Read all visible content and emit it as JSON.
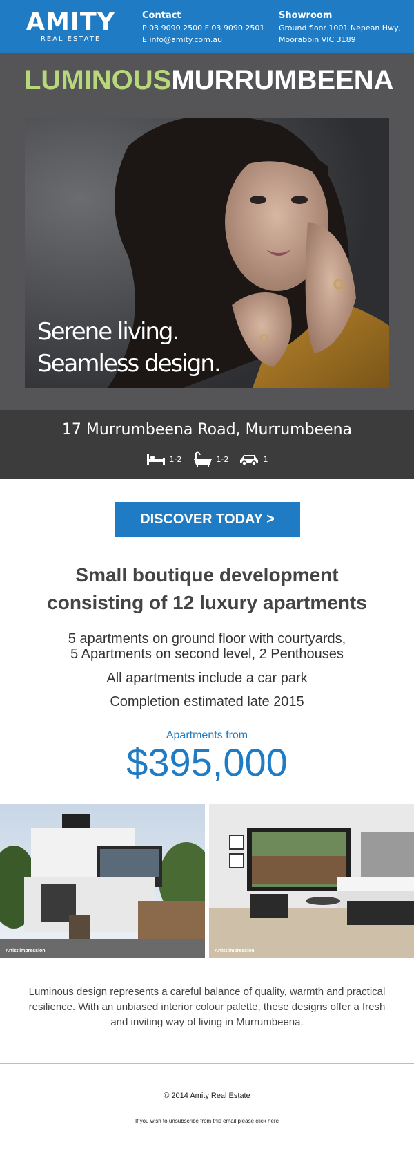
{
  "header": {
    "logo_main": "AMITY",
    "logo_sub": "REAL ESTATE",
    "contact": {
      "title": "Contact",
      "phone_line": "P 03 9090 2500 F 03 9090 2501",
      "email_line": "E info@amity.com.au"
    },
    "showroom": {
      "title": "Showroom",
      "line1": "Ground floor 1001 Nepean Hwy,",
      "line2": "Moorabbin VIC 3189"
    }
  },
  "hero": {
    "title_part1": "LUMINOUS",
    "title_part2": "MURRUMBEENA",
    "tagline_line1": "Serene living.",
    "tagline_line2": "Seamless design."
  },
  "property": {
    "address": "17 Murrumbeena Road, Murrumbeena",
    "features": [
      {
        "icon": "bed-icon",
        "value": "1-2"
      },
      {
        "icon": "bath-icon",
        "value": "1-2"
      },
      {
        "icon": "car-icon",
        "value": "1"
      }
    ]
  },
  "cta": {
    "label": "DISCOVER TODAY >"
  },
  "headline": {
    "line1": "Small boutique development",
    "line2": "consisting of 12 luxury apartments"
  },
  "details": {
    "line1": "5 apartments on ground floor with courtyards,",
    "line2": "5 Apartments on second level, 2 Penthouses",
    "line3": "All apartments include a car park",
    "line4": "Completion estimated late 2015"
  },
  "pricing": {
    "label": "Apartments from",
    "price": "$395,000"
  },
  "gallery": [
    {
      "caption": "Artist impression"
    },
    {
      "caption": "Artist impression"
    }
  ],
  "description": "Luminous design represents a careful balance of quality, warmth and practical resilience. With an unbiased interior colour palette, these designs offer a fresh and inviting way of living in Murrumbeena.",
  "footer": {
    "copyright": "© 2014 Amity Real Estate",
    "unsubscribe_text": "If you wish to unsubscribe from this email please ",
    "unsubscribe_link": "click here"
  },
  "colors": {
    "brand_blue": "#1f7cc4",
    "accent_green": "#b7d77a",
    "hero_gray": "#555557",
    "address_band": "#3c3c3c"
  }
}
